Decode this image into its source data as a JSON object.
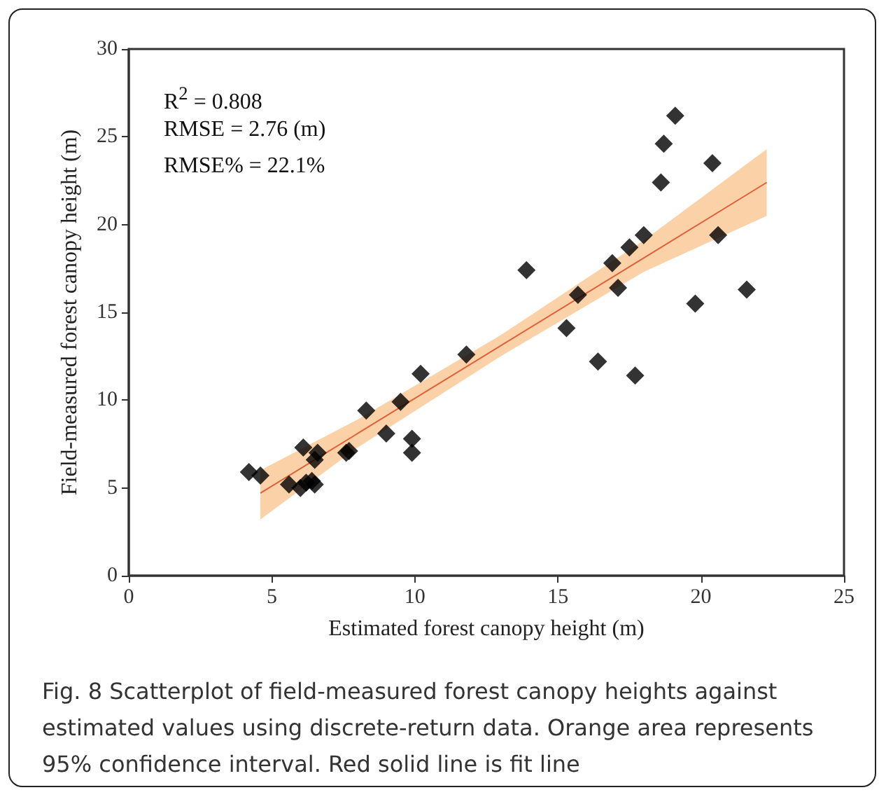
{
  "chart_data": {
    "type": "scatter",
    "xlabel": "Estimated forest canopy height (m)",
    "ylabel": "Field-measured forest canopy height (m)",
    "xlim": [
      0,
      25
    ],
    "xticks": [
      0,
      5,
      10,
      15,
      20,
      25
    ],
    "ylim": [
      0,
      30
    ],
    "yticks": [
      0,
      5,
      10,
      15,
      20,
      25,
      30
    ],
    "grid": false,
    "marker": "diamond",
    "annotations": [
      "R$^{2}$ = 0.808",
      "RMSE = 2.76 (m)",
      "RMSE% = 22.1%",
      "Fig. 8 Scatterplot of field-measured forest canopy heights against estimated values using discrete-return data. Orange area represents 95% confidence interval. Red solid line is fit line"
    ],
    "series": [
      {
        "color": "#000000",
        "x": [
          4.2,
          4.6,
          5.6,
          6.0,
          6.1,
          6.2,
          6.4,
          6.5,
          6.5,
          6.6,
          7.6,
          7.7,
          8.3,
          9.0,
          9.5,
          9.9,
          9.9,
          10.2,
          11.8,
          13.9,
          15.3,
          15.7,
          16.4,
          16.9,
          17.1,
          17.5,
          17.7,
          18.0,
          18.6,
          18.7,
          19.1,
          19.8,
          20.4,
          20.6,
          21.6
        ],
        "values": [
          5.9,
          5.7,
          5.2,
          5.0,
          7.3,
          5.3,
          5.4,
          5.2,
          6.6,
          7.0,
          7.0,
          7.1,
          9.4,
          8.1,
          9.9,
          7.0,
          7.8,
          11.5,
          12.6,
          17.4,
          14.1,
          16.0,
          12.2,
          17.8,
          16.4,
          18.7,
          11.4,
          19.4,
          22.4,
          24.6,
          26.2,
          15.5,
          23.5,
          19.4,
          16.3
        ]
      },
      {
        "type": "line",
        "color": "#e0603a",
        "marker": "none",
        "x": [
          4.6,
          8,
          13,
          18,
          22.3
        ],
        "values": [
          4.7,
          8.1,
          13.1,
          18.1,
          22.4
        ],
        "lower": [
          3.2,
          7.3,
          12.5,
          17.3,
          20.5
        ],
        "upper": [
          6.0,
          8.9,
          13.7,
          19.1,
          24.3
        ]
      }
    ]
  }
}
